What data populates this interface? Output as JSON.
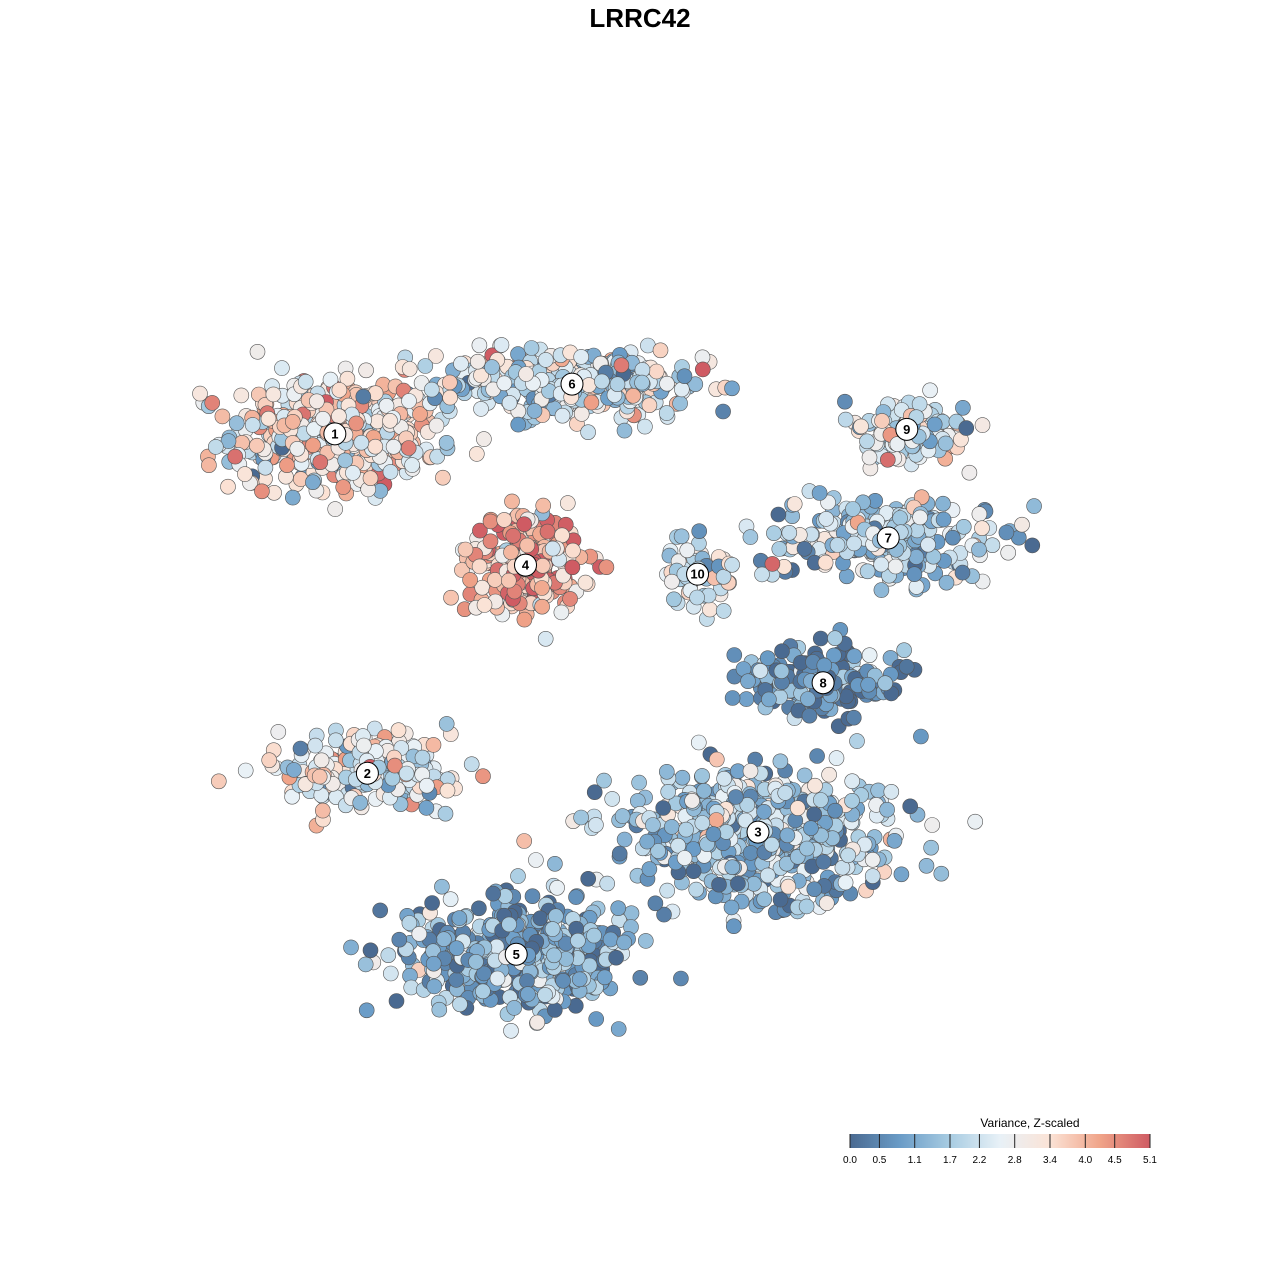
{
  "chart_data": {
    "type": "scatter",
    "title": "LRRC42",
    "legend": {
      "title": "Variance, Z-scaled",
      "placement": "bottom-right",
      "ticks": [
        0.0,
        0.5,
        1.1,
        1.7,
        2.2,
        2.8,
        3.4,
        4.0,
        4.5,
        5.1
      ],
      "tick_labels": [
        "0.0",
        "0.5",
        "1.1",
        "1.7",
        "2.2",
        "2.8",
        "3.4",
        "4.0",
        "4.5",
        "5.1"
      ]
    },
    "color_scale": {
      "min": 0.0,
      "max": 5.1,
      "stops": [
        "#4a6a91",
        "#6a9cc7",
        "#a8cce2",
        "#e8f1f7",
        "#fbe3d6",
        "#f0a489",
        "#cf5b63"
      ]
    },
    "xlim": [
      0,
      100
    ],
    "ylim": [
      0,
      100
    ],
    "clusters": [
      {
        "label": "1",
        "x": 14.5,
        "y": 72.5,
        "sx": 10.0,
        "sy": 5.5,
        "n": 520,
        "value": 3.0
      },
      {
        "label": "6",
        "x": 40.0,
        "y": 78.0,
        "sx": 13.0,
        "sy": 3.5,
        "n": 380,
        "value": 2.4
      },
      {
        "label": "4",
        "x": 35.0,
        "y": 58.0,
        "sx": 5.5,
        "sy": 5.0,
        "n": 240,
        "value": 4.0
      },
      {
        "label": "10",
        "x": 53.5,
        "y": 57.0,
        "sx": 3.5,
        "sy": 3.0,
        "n": 60,
        "value": 2.3
      },
      {
        "label": "9",
        "x": 76.0,
        "y": 73.0,
        "sx": 6.0,
        "sy": 3.0,
        "n": 130,
        "value": 2.3
      },
      {
        "label": "7",
        "x": 74.0,
        "y": 61.0,
        "sx": 12.0,
        "sy": 4.5,
        "n": 260,
        "value": 1.7
      },
      {
        "label": "8",
        "x": 67.0,
        "y": 45.0,
        "sx": 8.0,
        "sy": 3.5,
        "n": 200,
        "value": 0.6
      },
      {
        "label": "2",
        "x": 18.0,
        "y": 35.0,
        "sx": 8.5,
        "sy": 3.5,
        "n": 230,
        "value": 2.6
      },
      {
        "label": "3",
        "x": 60.0,
        "y": 28.5,
        "sx": 13.0,
        "sy": 6.0,
        "n": 620,
        "value": 1.5
      },
      {
        "label": "5",
        "x": 34.0,
        "y": 15.0,
        "sx": 10.5,
        "sy": 5.5,
        "n": 560,
        "value": 1.2
      }
    ]
  }
}
